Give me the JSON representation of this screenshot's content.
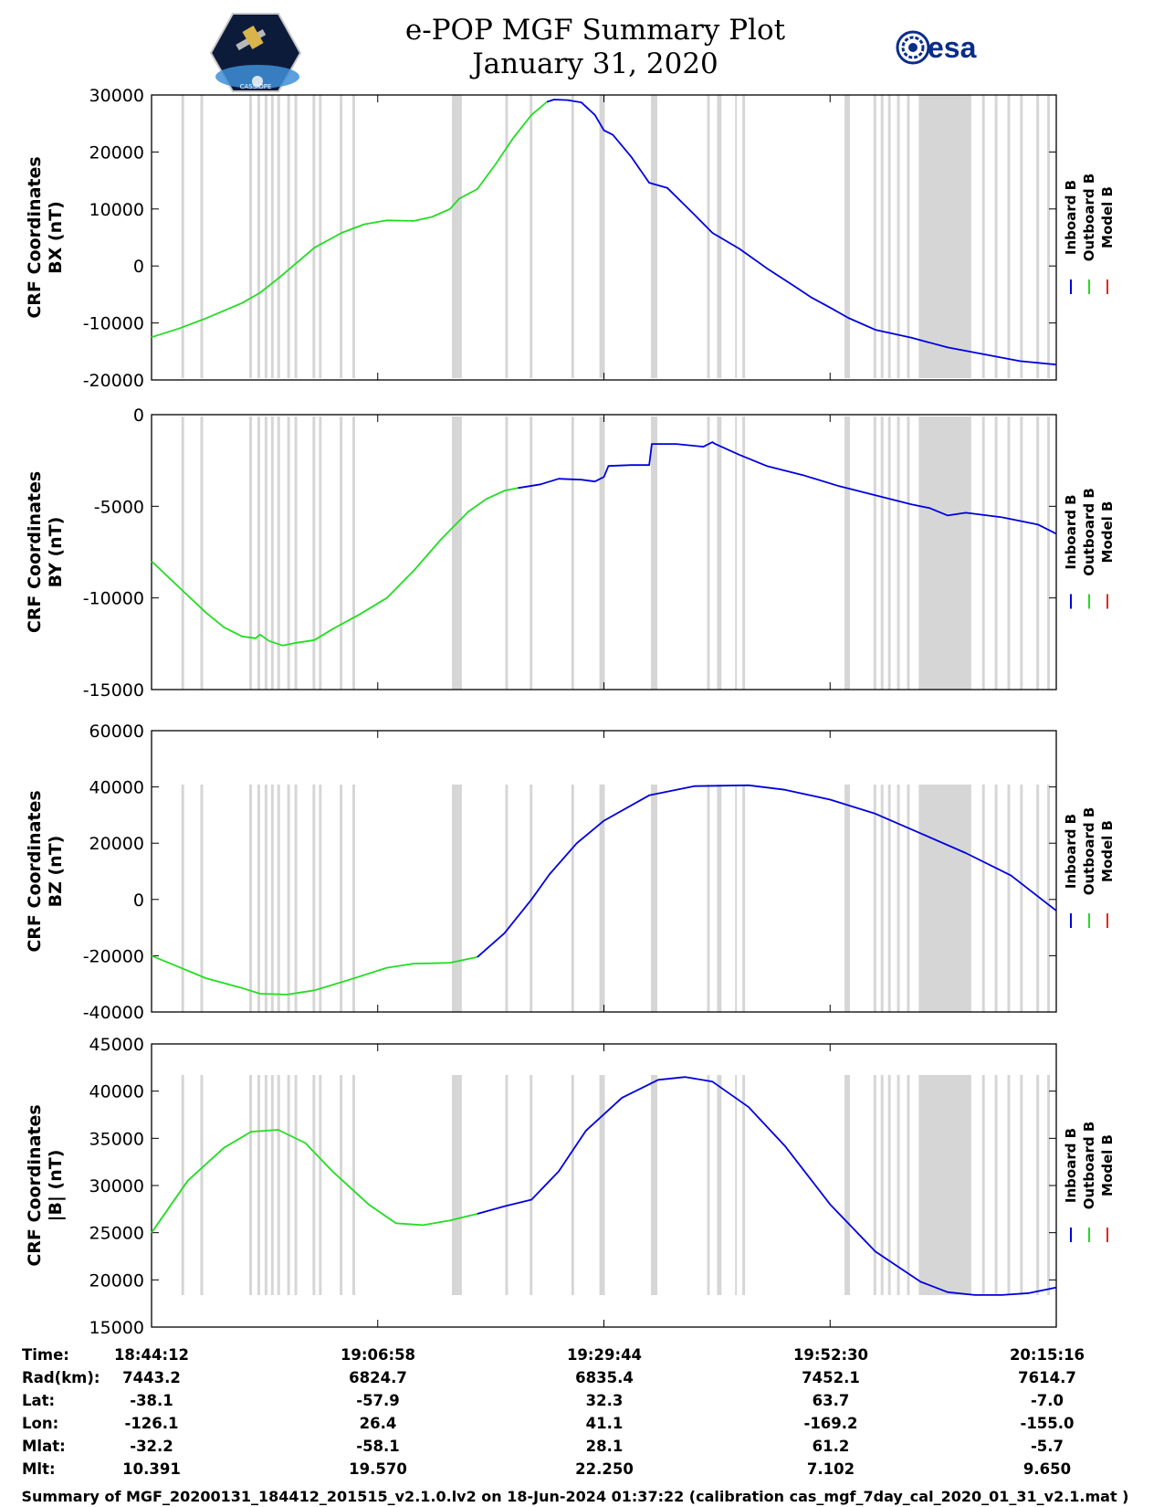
{
  "header": {
    "title": "e-POP MGF Summary Plot",
    "date": "January 31, 2020",
    "left_logo_text": "CASSIOPE",
    "right_logo_text": "esa"
  },
  "legend": [
    "Inboard B",
    "Outboard B",
    "Model B"
  ],
  "colors": {
    "inboard": "#0000dd",
    "outboard": "#22dd22",
    "model": "#ee2222",
    "gap": "#d6d6d6"
  },
  "chart_data": [
    {
      "type": "line",
      "ylabel_1": "CRF Coordinates",
      "ylabel_2": "BX (nT)",
      "ylim": [
        -20000,
        30000
      ],
      "yticks": [
        -20000,
        -10000,
        0,
        10000,
        20000,
        30000
      ],
      "yticklabels": [
        "-20000",
        "-10000",
        "0",
        "10000",
        "20000",
        "30000"
      ],
      "series": [
        {
          "name": "Outboard B",
          "color": "outboard",
          "x": [
            0,
            0.03,
            0.06,
            0.1,
            0.12,
            0.14,
            0.16,
            0.18,
            0.21,
            0.235,
            0.26,
            0.29,
            0.31,
            0.33,
            0.34,
            0.36,
            0.38,
            0.4,
            0.42,
            0.437
          ],
          "y": [
            -12500,
            -11000,
            -9200,
            -6500,
            -4700,
            -2200,
            500,
            3200,
            5800,
            7300,
            8000,
            7900,
            8600,
            10000,
            11800,
            13500,
            17800,
            22500,
            26500,
            28800
          ]
        },
        {
          "name": "Inboard B",
          "color": "inboard",
          "x": [
            0.437,
            0.445,
            0.46,
            0.475,
            0.49,
            0.5,
            0.51,
            0.53,
            0.55,
            0.57,
            0.6,
            0.62,
            0.65,
            0.68,
            0.71,
            0.73,
            0.75,
            0.77,
            0.8,
            0.84,
            0.88,
            0.92,
            0.96,
            1.0
          ],
          "y": [
            28800,
            29200,
            29100,
            28700,
            26500,
            23800,
            23000,
            19200,
            14600,
            13700,
            9000,
            5800,
            3000,
            -400,
            -3500,
            -5600,
            -7300,
            -9100,
            -11200,
            -12600,
            -14300,
            -15500,
            -16700,
            -17300
          ]
        }
      ]
    },
    {
      "type": "line",
      "ylabel_1": "CRF Coordinates",
      "ylabel_2": "BY (nT)",
      "ylim": [
        -15000,
        0
      ],
      "yticks": [
        -15000,
        -10000,
        -5000,
        0
      ],
      "yticklabels": [
        "-15000",
        "-10000",
        "-5000",
        "0"
      ],
      "series": [
        {
          "name": "Outboard B",
          "color": "outboard",
          "x": [
            0,
            0.03,
            0.06,
            0.08,
            0.1,
            0.115,
            0.12,
            0.13,
            0.145,
            0.16,
            0.18,
            0.2,
            0.23,
            0.26,
            0.29,
            0.32,
            0.35,
            0.37,
            0.39,
            0.405
          ],
          "y": [
            -8000,
            -9400,
            -10800,
            -11600,
            -12100,
            -12200,
            -12000,
            -12350,
            -12600,
            -12450,
            -12300,
            -11700,
            -10900,
            -10000,
            -8500,
            -6800,
            -5300,
            -4600,
            -4150,
            -4000
          ]
        },
        {
          "name": "Inboard B",
          "color": "inboard",
          "x": [
            0.405,
            0.43,
            0.45,
            0.475,
            0.49,
            0.5,
            0.505,
            0.53,
            0.55,
            0.553,
            0.58,
            0.61,
            0.62,
            0.623,
            0.65,
            0.68,
            0.72,
            0.76,
            0.8,
            0.84,
            0.86,
            0.88,
            0.9,
            0.94,
            0.98,
            1.0
          ],
          "y": [
            -4000,
            -3800,
            -3500,
            -3550,
            -3650,
            -3400,
            -2800,
            -2750,
            -2750,
            -1600,
            -1600,
            -1750,
            -1500,
            -1600,
            -2200,
            -2800,
            -3300,
            -3900,
            -4400,
            -4900,
            -5100,
            -5500,
            -5350,
            -5600,
            -6000,
            -6500
          ]
        }
      ]
    },
    {
      "type": "line",
      "ylabel_1": "CRF Coordinates",
      "ylabel_2": "BZ (nT)",
      "ylim": [
        -40000,
        60000
      ],
      "yticks": [
        -40000,
        -20000,
        0,
        20000,
        40000,
        60000
      ],
      "yticklabels": [
        "-40000",
        "-20000",
        "0",
        "20000",
        "40000",
        "60000"
      ],
      "series": [
        {
          "name": "Outboard B",
          "color": "outboard",
          "x": [
            0,
            0.03,
            0.06,
            0.1,
            0.12,
            0.15,
            0.18,
            0.22,
            0.26,
            0.29,
            0.31,
            0.33,
            0.36
          ],
          "y": [
            -20000,
            -24000,
            -28000,
            -31500,
            -33500,
            -33800,
            -32300,
            -28400,
            -24300,
            -22800,
            -22700,
            -22500,
            -20500
          ]
        },
        {
          "name": "Inboard B",
          "color": "inboard",
          "x": [
            0.36,
            0.39,
            0.42,
            0.44,
            0.47,
            0.5,
            0.55,
            0.6,
            0.66,
            0.7,
            0.75,
            0.8,
            0.85,
            0.9,
            0.95,
            1.0
          ],
          "y": [
            -20500,
            -12000,
            0,
            9000,
            20000,
            28000,
            37000,
            40300,
            40600,
            39000,
            35500,
            30500,
            23500,
            16500,
            8500,
            -4000
          ]
        }
      ]
    },
    {
      "type": "line",
      "ylabel_1": "CRF Coordinates",
      "ylabel_2": "|B| (nT)",
      "ylim": [
        15000,
        45000
      ],
      "yticks": [
        15000,
        20000,
        25000,
        30000,
        35000,
        40000,
        45000
      ],
      "yticklabels": [
        "15000",
        "20000",
        "25000",
        "30000",
        "35000",
        "40000",
        "45000"
      ],
      "series": [
        {
          "name": "Outboard B",
          "color": "outboard",
          "x": [
            0,
            0.04,
            0.08,
            0.11,
            0.14,
            0.17,
            0.2,
            0.24,
            0.27,
            0.3,
            0.33,
            0.36
          ],
          "y": [
            25000,
            30500,
            34000,
            35700,
            35900,
            34500,
            31500,
            28000,
            26000,
            25800,
            26300,
            27000
          ]
        },
        {
          "name": "Inboard B",
          "color": "inboard",
          "x": [
            0.36,
            0.39,
            0.42,
            0.45,
            0.48,
            0.52,
            0.56,
            0.59,
            0.62,
            0.66,
            0.7,
            0.75,
            0.8,
            0.85,
            0.88,
            0.91,
            0.94,
            0.97,
            1.0
          ],
          "y": [
            27000,
            27800,
            28500,
            31500,
            35800,
            39300,
            41200,
            41500,
            41000,
            38300,
            34200,
            28000,
            23000,
            19800,
            18700,
            18400,
            18400,
            18600,
            19200
          ]
        }
      ]
    }
  ],
  "gaps": [
    [
      0.033,
      0.036
    ],
    [
      0.054,
      0.057
    ],
    [
      0.108,
      0.111
    ],
    [
      0.117,
      0.12
    ],
    [
      0.125,
      0.128
    ],
    [
      0.132,
      0.135
    ],
    [
      0.139,
      0.142
    ],
    [
      0.15,
      0.153
    ],
    [
      0.158,
      0.161
    ],
    [
      0.178,
      0.181
    ],
    [
      0.185,
      0.188
    ],
    [
      0.208,
      0.211
    ],
    [
      0.222,
      0.225
    ],
    [
      0.332,
      0.34
    ],
    [
      0.34,
      0.343
    ],
    [
      0.391,
      0.394
    ],
    [
      0.418,
      0.421
    ],
    [
      0.464,
      0.467
    ],
    [
      0.495,
      0.501
    ],
    [
      0.552,
      0.559
    ],
    [
      0.614,
      0.617
    ],
    [
      0.625,
      0.63
    ],
    [
      0.645,
      0.647
    ],
    [
      0.653,
      0.656
    ],
    [
      0.766,
      0.772
    ],
    [
      0.798,
      0.801
    ],
    [
      0.806,
      0.809
    ],
    [
      0.814,
      0.817
    ],
    [
      0.824,
      0.827
    ],
    [
      0.835,
      0.838
    ],
    [
      0.848,
      0.906
    ],
    [
      0.918,
      0.921
    ],
    [
      0.932,
      0.935
    ],
    [
      0.946,
      0.949
    ],
    [
      0.96,
      0.963
    ],
    [
      0.978,
      0.981
    ],
    [
      0.99,
      0.993
    ]
  ],
  "info_rows": [
    {
      "label": "Time:",
      "values": [
        "18:44:12",
        "19:06:58",
        "19:29:44",
        "19:52:30",
        "20:15:16"
      ]
    },
    {
      "label": "Rad(km):",
      "values": [
        "7443.2",
        "6824.7",
        "6835.4",
        "7452.1",
        "7614.7"
      ]
    },
    {
      "label": "Lat:",
      "values": [
        "-38.1",
        "-57.9",
        "32.3",
        "63.7",
        "-7.0"
      ]
    },
    {
      "label": "Lon:",
      "values": [
        "-126.1",
        "26.4",
        "41.1",
        "-169.2",
        "-155.0"
      ]
    },
    {
      "label": "Mlat:",
      "values": [
        "-32.2",
        "-58.1",
        "28.1",
        "61.2",
        "-5.7"
      ]
    },
    {
      "label": "Mlt:",
      "values": [
        "10.391",
        "19.570",
        "22.250",
        "7.102",
        "9.650"
      ]
    }
  ],
  "footer": "Summary of MGF_20200131_184412_201515_v2.1.0.lv2 on 18-Jun-2024 01:37:22 (calibration cas_mgf_7day_cal_2020_01_31_v2.1.mat )"
}
